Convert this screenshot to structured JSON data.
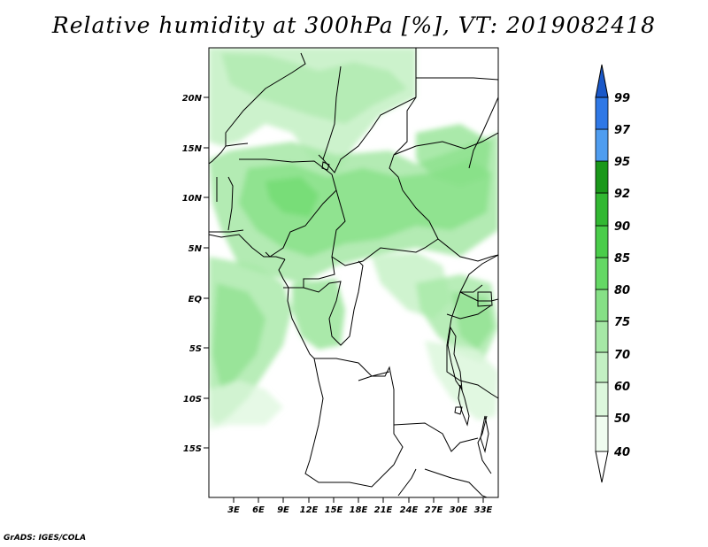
{
  "title": "Relative humidity at 300hPa [%], VT: 2019082418",
  "credit": "GrADS: IGES/COLA",
  "map": {
    "lat_ticks": [
      "20N",
      "15N",
      "10N",
      "5N",
      "EQ",
      "5S",
      "10S",
      "15S"
    ],
    "lon_ticks": [
      "3E",
      "6E",
      "9E",
      "12E",
      "15E",
      "18E",
      "21E",
      "24E",
      "27E",
      "30E",
      "33E"
    ]
  },
  "colorbar": {
    "levels": [
      "40",
      "50",
      "60",
      "70",
      "75",
      "80",
      "85",
      "90",
      "92",
      "95",
      "97",
      "99"
    ],
    "colors": [
      "#f0fcf0",
      "#dcf7dc",
      "#c3f0c3",
      "#a6e8a6",
      "#86e086",
      "#65d865",
      "#4acd4a",
      "#32b832",
      "#1a981a",
      "#4f9df0",
      "#2f78e6",
      "#1a58c8"
    ]
  }
}
